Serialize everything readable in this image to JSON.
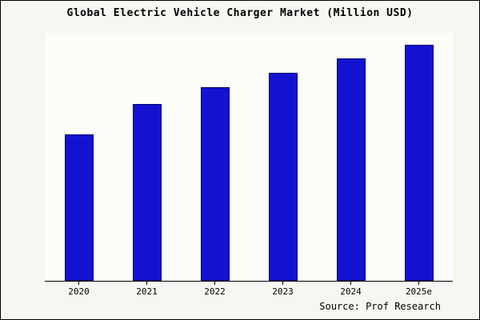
{
  "title": "Global Electric Vehicle Charger Market (Million USD)",
  "source": "Source: Prof Research",
  "chart_data": {
    "type": "bar",
    "title": "Global Electric Vehicle Charger Market (Million USD)",
    "categories": [
      "2020",
      "2021",
      "2022",
      "2023",
      "2024",
      "2025e"
    ],
    "values": [
      62,
      75,
      82,
      88,
      94,
      100
    ],
    "xlabel": "",
    "ylabel": "",
    "ylim": [
      0,
      105
    ],
    "grid": false,
    "legend": false,
    "bar_color": "#1212d0",
    "bar_border_color": "#000070",
    "plot_background": "#fcfcf9",
    "outer_background": "#f6f6f2",
    "annotation": "Source: Prof Research"
  }
}
